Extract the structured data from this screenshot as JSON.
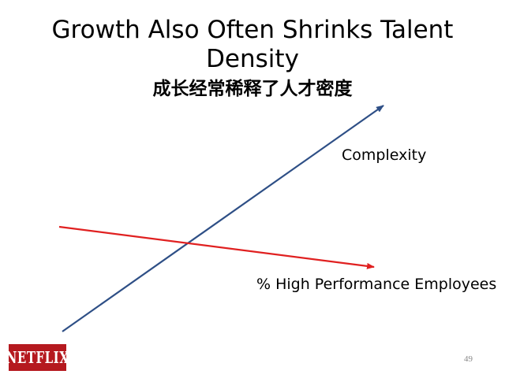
{
  "slide": {
    "title": "Growth Also Often Shrinks Talent Density",
    "subtitle": "成长经常稀释了人才密度",
    "page_number": "49"
  },
  "diagram": {
    "lines": [
      {
        "label": "Complexity",
        "trend": "increasing",
        "color": "#2e4f86"
      },
      {
        "label": "% High Performance Employees",
        "trend": "decreasing",
        "color": "#e02020"
      }
    ]
  },
  "logo": {
    "text": "NETFLIX",
    "background_color": "#b5191f",
    "text_color": "#ffffff"
  }
}
